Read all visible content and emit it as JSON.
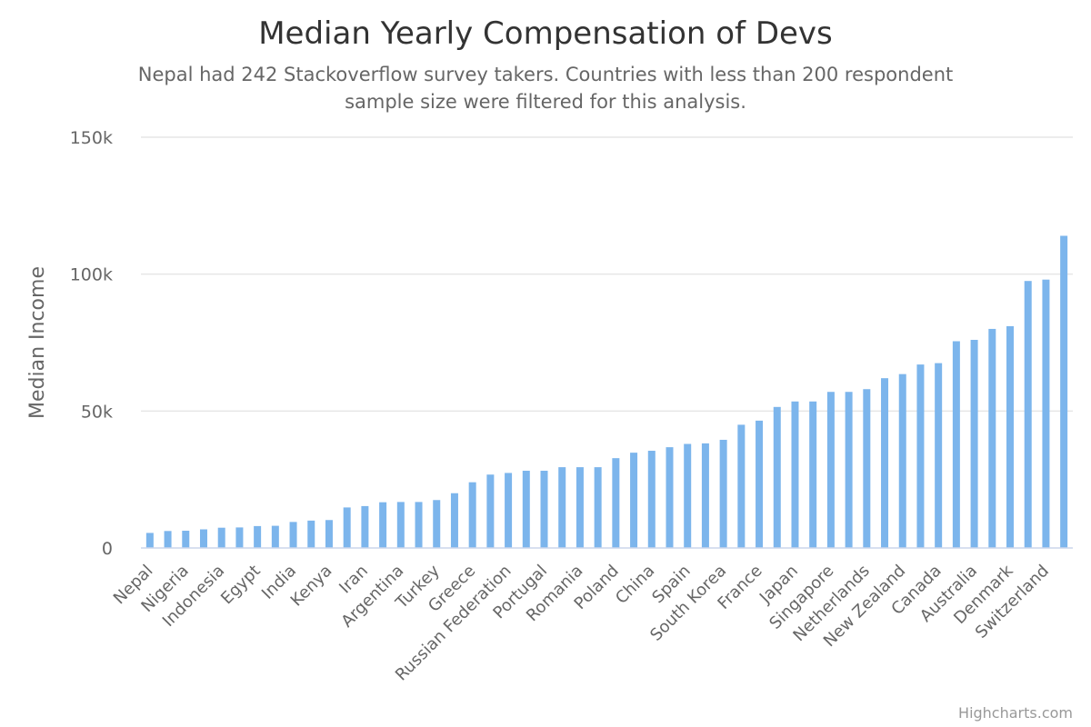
{
  "chart_data": {
    "type": "bar",
    "title": "Median Yearly Compensation of Devs",
    "subtitle_lines": [
      "Nepal had 242 Stackoverflow survey takers. Countries with less than 200 respondent",
      "sample size were filtered for this analysis."
    ],
    "ylabel": "Median Income",
    "ylim": [
      0,
      150000
    ],
    "yticks": [
      {
        "value": 0,
        "label": "0"
      },
      {
        "value": 50000,
        "label": "50k"
      },
      {
        "value": 100000,
        "label": "100k"
      },
      {
        "value": 150000,
        "label": "150k"
      }
    ],
    "grid": true,
    "legend": "none",
    "bar_color": "#7cb5ec",
    "categories": [
      "Nepal",
      "",
      "Nigeria",
      "",
      "Indonesia",
      "",
      "Egypt",
      "",
      "India",
      "",
      "Kenya",
      "",
      "Iran",
      "",
      "Argentina",
      "",
      "Turkey",
      "",
      "Greece",
      "",
      "Russian Federation",
      "",
      "Portugal",
      "",
      "Romania",
      "",
      "Poland",
      "",
      "China",
      "",
      "Spain",
      "",
      "South Korea",
      "",
      "France",
      "",
      "Japan",
      "",
      "Singapore",
      "",
      "Netherlands",
      "",
      "New Zealand",
      "",
      "Canada",
      "",
      "Australia",
      "",
      "Denmark",
      "",
      "Switzerland",
      ""
    ],
    "values": [
      5500,
      6200,
      6300,
      6800,
      7400,
      7500,
      8000,
      8100,
      9500,
      10000,
      10200,
      14800,
      15300,
      16700,
      16800,
      16800,
      17500,
      20000,
      24000,
      26800,
      27400,
      28200,
      28200,
      29500,
      29500,
      29500,
      32800,
      34800,
      35500,
      36800,
      38000,
      38200,
      39500,
      45000,
      46500,
      51500,
      53500,
      53500,
      57000,
      57000,
      58000,
      62000,
      63500,
      67000,
      67500,
      75500,
      76000,
      80000,
      81000,
      97500,
      98000,
      114000
    ]
  },
  "credits": "Highcharts.com"
}
